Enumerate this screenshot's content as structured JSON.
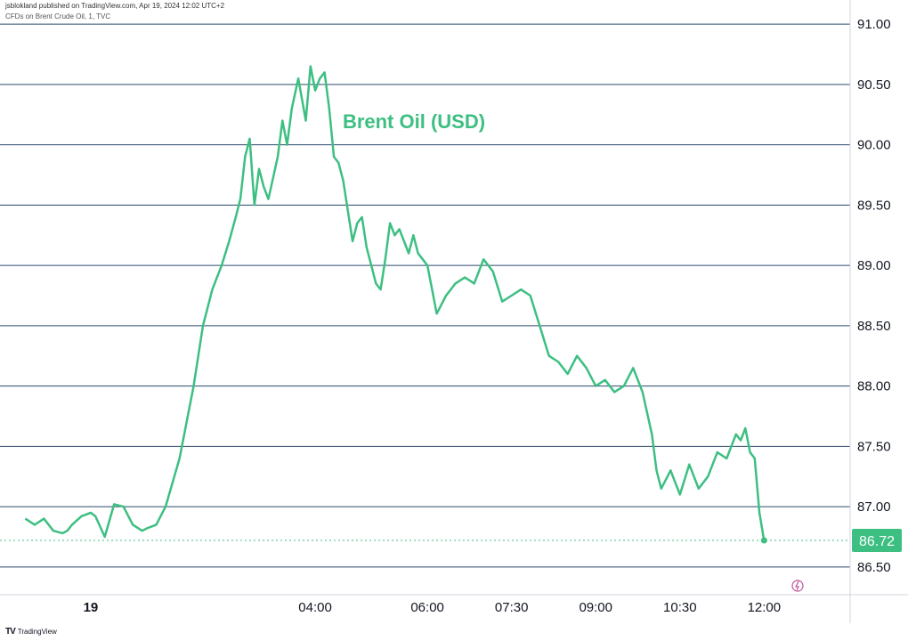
{
  "header": {
    "published": "jsblokland published on TradingView.com, Apr 19, 2024 12:02 UTC+2",
    "instrument": "CFDs on Brent Crude Oil, 1, TVC"
  },
  "footer": {
    "brand": "TradingView"
  },
  "colors": {
    "line": "#3dbf82",
    "grid": "#2a4a6b",
    "label_bg": "#3dbf82",
    "label_text": "#ffffff"
  },
  "chart_data": {
    "type": "line",
    "title": "Brent Oil (USD)",
    "ylim": [
      86.27,
      91.2
    ],
    "y_ticks": [
      91.0,
      90.5,
      90.0,
      89.5,
      89.0,
      88.5,
      88.0,
      87.5,
      87.0,
      86.5
    ],
    "y_tick_labels": [
      "91.00",
      "90.50",
      "90.00",
      "89.50",
      "89.00",
      "88.50",
      "88.00",
      "87.50",
      "87.00",
      "86.50"
    ],
    "x_ticks": [
      {
        "label": "19",
        "t": 0
      },
      {
        "label": "04:00",
        "t": 240
      },
      {
        "label": "06:00",
        "t": 360
      },
      {
        "label": "07:30",
        "t": 450
      },
      {
        "label": "09:00",
        "t": 540
      },
      {
        "label": "10:30",
        "t": 630
      },
      {
        "label": "12:00",
        "t": 720
      }
    ],
    "x_time_minutes": [
      -70,
      -60,
      -50,
      -40,
      -30,
      -25,
      -20,
      -10,
      0,
      5,
      15,
      25,
      35,
      45,
      55,
      60,
      70,
      80,
      95,
      110,
      120,
      130,
      140,
      148,
      155,
      160,
      165,
      170,
      175,
      180,
      185,
      190,
      200,
      205,
      210,
      215,
      222,
      230,
      235,
      240,
      245,
      250,
      255,
      260,
      265,
      270,
      275,
      280,
      285,
      290,
      295,
      300,
      305,
      310,
      315,
      320,
      325,
      330,
      335,
      340,
      345,
      350,
      355,
      360,
      365,
      370,
      380,
      390,
      400,
      410,
      420,
      430,
      440,
      450,
      460,
      470,
      480,
      490,
      500,
      510,
      520,
      530,
      540,
      550,
      560,
      570,
      580,
      590,
      600,
      605,
      610,
      620,
      630,
      640,
      650,
      660,
      670,
      680,
      690,
      695,
      700,
      705,
      710,
      715,
      720
    ],
    "values": [
      86.9,
      86.85,
      86.9,
      86.8,
      86.78,
      86.8,
      86.85,
      86.92,
      86.95,
      86.92,
      86.75,
      87.02,
      87.0,
      86.85,
      86.8,
      86.82,
      86.85,
      87.0,
      87.4,
      88.0,
      88.5,
      88.8,
      89.0,
      89.2,
      89.4,
      89.55,
      89.9,
      90.05,
      89.5,
      89.8,
      89.65,
      89.55,
      89.9,
      90.2,
      90.0,
      90.3,
      90.55,
      90.2,
      90.65,
      90.45,
      90.55,
      90.6,
      90.3,
      89.9,
      89.85,
      89.7,
      89.45,
      89.2,
      89.35,
      89.4,
      89.15,
      89.0,
      88.85,
      88.8,
      89.05,
      89.35,
      89.25,
      89.3,
      89.2,
      89.1,
      89.25,
      89.1,
      89.05,
      89.0,
      88.8,
      88.6,
      88.75,
      88.85,
      88.9,
      88.85,
      89.05,
      88.95,
      88.7,
      88.75,
      88.8,
      88.75,
      88.5,
      88.25,
      88.2,
      88.1,
      88.25,
      88.15,
      88.0,
      88.05,
      87.95,
      88.0,
      88.15,
      87.95,
      87.6,
      87.3,
      87.15,
      87.3,
      87.1,
      87.35,
      87.15,
      87.25,
      87.45,
      87.4,
      87.6,
      87.55,
      87.65,
      87.45,
      87.4,
      86.95,
      86.72
    ],
    "last_price": 86.72,
    "last_price_label": "86.72"
  }
}
